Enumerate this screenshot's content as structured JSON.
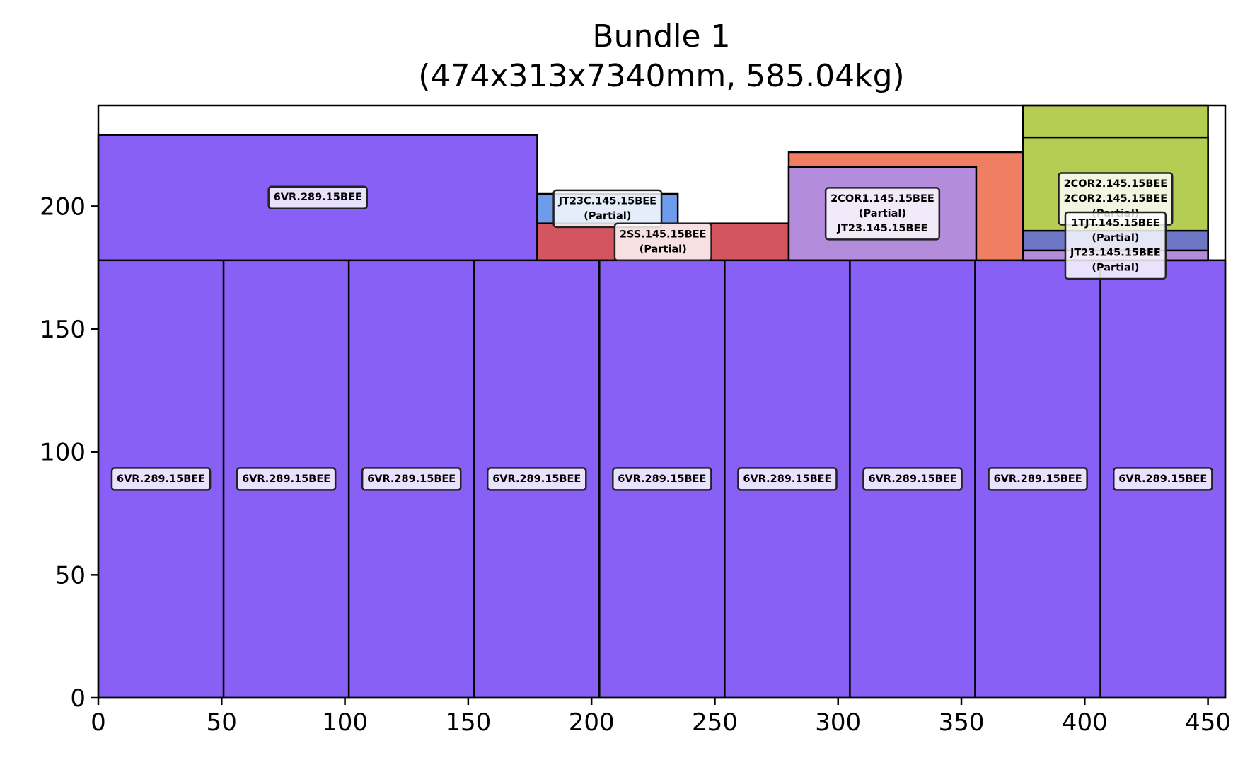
{
  "chart_data": {
    "type": "rectangle-packing",
    "title": "Bundle 1",
    "subtitle": "(474x313x7340mm, 585.04kg)",
    "xlim": [
      0,
      457
    ],
    "ylim": [
      0,
      241
    ],
    "x_ticks": [
      0,
      50,
      100,
      150,
      200,
      250,
      300,
      350,
      400,
      450
    ],
    "y_ticks": [
      0,
      50,
      100,
      150,
      200
    ],
    "grid": false,
    "boxes": [
      {
        "x0": 0,
        "y0": 0,
        "x1": 50.8,
        "y1": 178,
        "color": "#8860f5",
        "label": [
          "6VR.289.15BEE"
        ]
      },
      {
        "x0": 50.8,
        "y0": 0,
        "x1": 101.6,
        "y1": 178,
        "color": "#8860f5",
        "label": [
          "6VR.289.15BEE"
        ]
      },
      {
        "x0": 101.6,
        "y0": 0,
        "x1": 152.4,
        "y1": 178,
        "color": "#8860f5",
        "label": [
          "6VR.289.15BEE"
        ]
      },
      {
        "x0": 152.4,
        "y0": 0,
        "x1": 203.2,
        "y1": 178,
        "color": "#8860f5",
        "label": [
          "6VR.289.15BEE"
        ]
      },
      {
        "x0": 203.2,
        "y0": 0,
        "x1": 254,
        "y1": 178,
        "color": "#8860f5",
        "label": [
          "6VR.289.15BEE"
        ]
      },
      {
        "x0": 254,
        "y0": 0,
        "x1": 304.8,
        "y1": 178,
        "color": "#8860f5",
        "label": [
          "6VR.289.15BEE"
        ]
      },
      {
        "x0": 304.8,
        "y0": 0,
        "x1": 355.6,
        "y1": 178,
        "color": "#8860f5",
        "label": [
          "6VR.289.15BEE"
        ]
      },
      {
        "x0": 355.6,
        "y0": 0,
        "x1": 406.4,
        "y1": 178,
        "color": "#8860f5",
        "label": [
          "6VR.289.15BEE"
        ]
      },
      {
        "x0": 406.4,
        "y0": 0,
        "x1": 457,
        "y1": 178,
        "color": "#8860f5",
        "label": [
          "6VR.289.15BEE"
        ]
      },
      {
        "x0": 0,
        "y0": 178,
        "x1": 178,
        "y1": 229,
        "color": "#8860f5",
        "label": [
          "6VR.289.15BEE"
        ]
      },
      {
        "x0": 178,
        "y0": 193,
        "x1": 235,
        "y1": 205,
        "color": "#6e9bea",
        "label": [
          "JT23C.145.15BEE",
          "(Partial)"
        ]
      },
      {
        "x0": 178,
        "y0": 178,
        "x1": 280,
        "y1": 193,
        "color": "#d25560",
        "label": [
          "2SS.145.15BEE",
          "(Partial)"
        ]
      },
      {
        "x0": 280,
        "y0": 178,
        "x1": 375,
        "y1": 222,
        "color": "#ef7e62",
        "label": []
      },
      {
        "x0": 280,
        "y0": 178,
        "x1": 356,
        "y1": 216,
        "color": "#b48cdc",
        "label": [
          "2COR1.145.15BEE",
          "(Partial)",
          "JT23.145.15BEE"
        ]
      },
      {
        "x0": 375,
        "y0": 178,
        "x1": 450,
        "y1": 241,
        "color": "#b5cd52",
        "label": []
      },
      {
        "x0": 375,
        "y0": 178,
        "x1": 450,
        "y1": 228,
        "color": "#b5cd52",
        "label": [
          "2COR2.145.15BEE",
          "2COR2.145.15BEE",
          "(Partial)"
        ]
      },
      {
        "x0": 375,
        "y0": 178,
        "x1": 450,
        "y1": 190,
        "color": "#6e77c6",
        "label": [
          "1TJT.145.15BEE",
          "(Partial)",
          "JT23.145.15BEE",
          "(Partial)"
        ]
      },
      {
        "x0": 375,
        "y0": 178,
        "x1": 450,
        "y1": 182,
        "color": "#b48cdc",
        "label": []
      }
    ]
  }
}
